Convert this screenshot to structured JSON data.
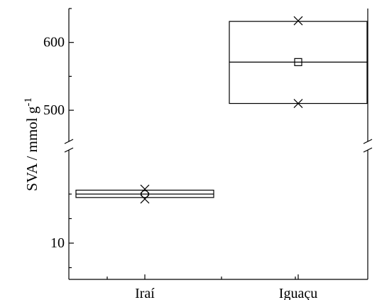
{
  "chart_data": {
    "type": "box",
    "ylabel": "SVA / mmol g",
    "ylabel_superscript": "-1",
    "categories": [
      "Iraí",
      "Iguaçu"
    ],
    "y_axis_break": {
      "lower_segment": {
        "range": [
          0,
          20
        ],
        "ticks": [
          10
        ]
      },
      "upper_segment": {
        "range": [
          455,
          650
        ],
        "ticks": [
          500,
          600
        ]
      }
    },
    "boxes": [
      {
        "category": "Iraí",
        "q1": 19.3,
        "median": 20.0,
        "q3": 20.8,
        "mean": 20.0,
        "min": 19.0,
        "max": 21.0
      },
      {
        "category": "Iguaçu",
        "q1": 510,
        "median": 571,
        "q3": 631,
        "mean": 571,
        "min": 510,
        "max": 632
      }
    ],
    "grid": false
  }
}
